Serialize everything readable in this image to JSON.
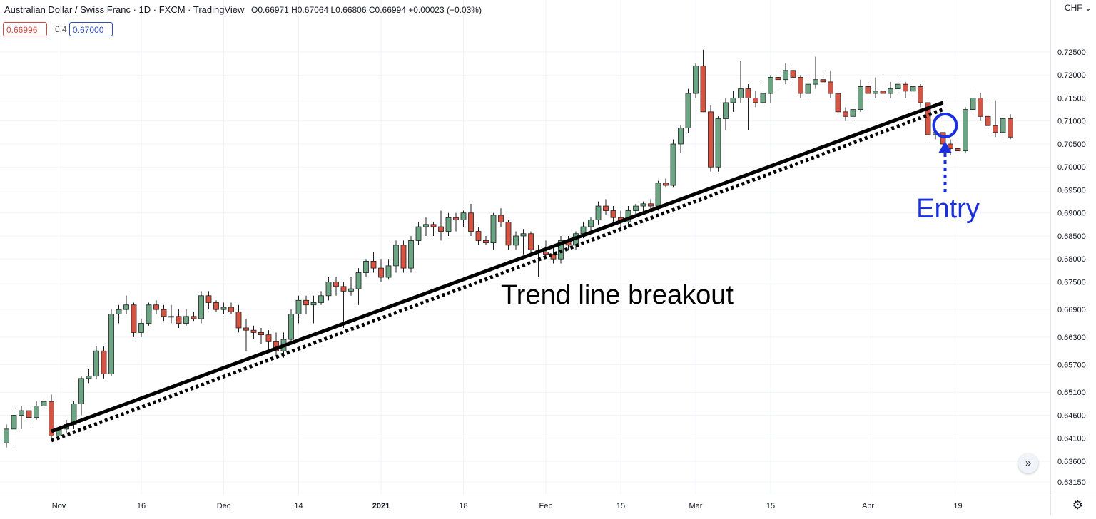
{
  "header": {
    "title": "Australian Dollar / Swiss Franc · 1D · FXCM · TradingView",
    "ohlc": "O0.66971 H0.67064 L0.66806 C0.66994 +0.00023 (+0.03%)",
    "bid": "0.66996",
    "spread": "0.4",
    "ask": "0.67000",
    "currency": "CHF",
    "currency_icon": "chevron-down-icon"
  },
  "controls": {
    "scroll_icon": "»",
    "settings_icon": "⚙"
  },
  "chart_data": {
    "type": "candlestick",
    "symbol": "AUDCHF",
    "timeframe": "1D",
    "y_ticks": [
      "0.72500",
      "0.72000",
      "0.71500",
      "0.71000",
      "0.70500",
      "0.70000",
      "0.69500",
      "0.69000",
      "0.68500",
      "0.68000",
      "0.67500",
      "0.66900",
      "0.66300",
      "0.65700",
      "0.65100",
      "0.64600",
      "0.64100",
      "0.63600",
      "0.63150"
    ],
    "y_tick_values": [
      0.725,
      0.72,
      0.715,
      0.71,
      0.705,
      0.7,
      0.695,
      0.69,
      0.685,
      0.68,
      0.675,
      0.669,
      0.663,
      0.657,
      0.651,
      0.646,
      0.641,
      0.636,
      0.6315
    ],
    "x_ticks": [
      {
        "label": "Nov",
        "bold": false,
        "bar": 7
      },
      {
        "label": "16",
        "bold": false,
        "bar": 18
      },
      {
        "label": "Dec",
        "bold": false,
        "bar": 29
      },
      {
        "label": "14",
        "bold": false,
        "bar": 39
      },
      {
        "label": "2021",
        "bold": true,
        "bar": 50
      },
      {
        "label": "18",
        "bold": false,
        "bar": 61
      },
      {
        "label": "Feb",
        "bold": false,
        "bar": 72
      },
      {
        "label": "15",
        "bold": false,
        "bar": 82
      },
      {
        "label": "Mar",
        "bold": false,
        "bar": 92
      },
      {
        "label": "15",
        "bold": false,
        "bar": 102
      },
      {
        "label": "Apr",
        "bold": false,
        "bar": 115
      },
      {
        "label": "19",
        "bold": false,
        "bar": 127
      }
    ],
    "candles": [
      [
        0.64,
        0.644,
        0.639,
        0.643
      ],
      [
        0.643,
        0.6475,
        0.6395,
        0.646
      ],
      [
        0.646,
        0.648,
        0.643,
        0.647
      ],
      [
        0.647,
        0.648,
        0.644,
        0.6455
      ],
      [
        0.6455,
        0.649,
        0.645,
        0.648
      ],
      [
        0.648,
        0.6495,
        0.647,
        0.649
      ],
      [
        0.649,
        0.6505,
        0.641,
        0.6415
      ],
      [
        0.6415,
        0.644,
        0.641,
        0.643
      ],
      [
        0.643,
        0.645,
        0.642,
        0.644
      ],
      [
        0.644,
        0.649,
        0.643,
        0.6485
      ],
      [
        0.6485,
        0.6545,
        0.646,
        0.654
      ],
      [
        0.654,
        0.656,
        0.653,
        0.6545
      ],
      [
        0.6545,
        0.661,
        0.654,
        0.66
      ],
      [
        0.66,
        0.661,
        0.654,
        0.655
      ],
      [
        0.655,
        0.669,
        0.6545,
        0.668
      ],
      [
        0.668,
        0.67,
        0.666,
        0.669
      ],
      [
        0.669,
        0.672,
        0.668,
        0.67
      ],
      [
        0.67,
        0.6705,
        0.663,
        0.664
      ],
      [
        0.664,
        0.667,
        0.663,
        0.666
      ],
      [
        0.666,
        0.6705,
        0.6655,
        0.67
      ],
      [
        0.67,
        0.671,
        0.668,
        0.669
      ],
      [
        0.669,
        0.67,
        0.6665,
        0.6675
      ],
      [
        0.6675,
        0.67,
        0.666,
        0.6675
      ],
      [
        0.6675,
        0.669,
        0.665,
        0.666
      ],
      [
        0.666,
        0.669,
        0.6655,
        0.6675
      ],
      [
        0.6675,
        0.6685,
        0.6665,
        0.667
      ],
      [
        0.667,
        0.673,
        0.666,
        0.672
      ],
      [
        0.672,
        0.673,
        0.669,
        0.6705
      ],
      [
        0.6705,
        0.671,
        0.6685,
        0.669
      ],
      [
        0.669,
        0.6705,
        0.668,
        0.6695
      ],
      [
        0.6695,
        0.6705,
        0.668,
        0.6685
      ],
      [
        0.6685,
        0.67,
        0.664,
        0.665
      ],
      [
        0.665,
        0.667,
        0.66,
        0.6645
      ],
      [
        0.6645,
        0.6655,
        0.6625,
        0.664
      ],
      [
        0.664,
        0.665,
        0.6615,
        0.6635
      ],
      [
        0.6635,
        0.6645,
        0.66,
        0.662
      ],
      [
        0.662,
        0.664,
        0.659,
        0.66
      ],
      [
        0.66,
        0.664,
        0.6585,
        0.6625
      ],
      [
        0.6625,
        0.669,
        0.662,
        0.668
      ],
      [
        0.668,
        0.672,
        0.666,
        0.671
      ],
      [
        0.671,
        0.672,
        0.668,
        0.67
      ],
      [
        0.67,
        0.672,
        0.666,
        0.6705
      ],
      [
        0.6705,
        0.673,
        0.67,
        0.672
      ],
      [
        0.672,
        0.676,
        0.671,
        0.675
      ],
      [
        0.675,
        0.676,
        0.672,
        0.674
      ],
      [
        0.674,
        0.675,
        0.665,
        0.673
      ],
      [
        0.673,
        0.676,
        0.672,
        0.6735
      ],
      [
        0.6735,
        0.678,
        0.67,
        0.677
      ],
      [
        0.677,
        0.68,
        0.676,
        0.6795
      ],
      [
        0.6795,
        0.6815,
        0.677,
        0.678
      ],
      [
        0.678,
        0.68,
        0.675,
        0.676
      ],
      [
        0.676,
        0.68,
        0.6755,
        0.6785
      ],
      [
        0.6785,
        0.684,
        0.677,
        0.683
      ],
      [
        0.683,
        0.684,
        0.677,
        0.678
      ],
      [
        0.678,
        0.685,
        0.677,
        0.684
      ],
      [
        0.684,
        0.688,
        0.683,
        0.687
      ],
      [
        0.687,
        0.689,
        0.685,
        0.6875
      ],
      [
        0.6875,
        0.688,
        0.685,
        0.687
      ],
      [
        0.687,
        0.6905,
        0.684,
        0.686
      ],
      [
        0.686,
        0.69,
        0.685,
        0.689
      ],
      [
        0.689,
        0.69,
        0.686,
        0.6885
      ],
      [
        0.6885,
        0.6905,
        0.687,
        0.69
      ],
      [
        0.69,
        0.692,
        0.685,
        0.686
      ],
      [
        0.686,
        0.687,
        0.683,
        0.684
      ],
      [
        0.684,
        0.685,
        0.683,
        0.6835
      ],
      [
        0.6835,
        0.69,
        0.682,
        0.6895
      ],
      [
        0.6895,
        0.691,
        0.687,
        0.688
      ],
      [
        0.688,
        0.6885,
        0.682,
        0.683
      ],
      [
        0.683,
        0.686,
        0.682,
        0.685
      ],
      [
        0.685,
        0.6865,
        0.681,
        0.6855
      ],
      [
        0.6855,
        0.686,
        0.681,
        0.682
      ],
      [
        0.682,
        0.683,
        0.676,
        0.6815
      ],
      [
        0.6815,
        0.684,
        0.68,
        0.681
      ],
      [
        0.681,
        0.683,
        0.679,
        0.68
      ],
      [
        0.68,
        0.685,
        0.679,
        0.684
      ],
      [
        0.684,
        0.685,
        0.682,
        0.683
      ],
      [
        0.683,
        0.686,
        0.682,
        0.6855
      ],
      [
        0.6855,
        0.688,
        0.6845,
        0.687
      ],
      [
        0.687,
        0.689,
        0.686,
        0.6885
      ],
      [
        0.6885,
        0.6925,
        0.6875,
        0.6915
      ],
      [
        0.6915,
        0.693,
        0.6895,
        0.6905
      ],
      [
        0.6905,
        0.6915,
        0.688,
        0.689
      ],
      [
        0.689,
        0.6905,
        0.687,
        0.688
      ],
      [
        0.688,
        0.6915,
        0.687,
        0.6905
      ],
      [
        0.6905,
        0.692,
        0.689,
        0.6915
      ],
      [
        0.6915,
        0.6925,
        0.6895,
        0.692
      ],
      [
        0.692,
        0.693,
        0.6905,
        0.6915
      ],
      [
        0.6915,
        0.697,
        0.6905,
        0.6965
      ],
      [
        0.6965,
        0.6975,
        0.6955,
        0.696
      ],
      [
        0.696,
        0.706,
        0.6955,
        0.705
      ],
      [
        0.705,
        0.709,
        0.703,
        0.7085
      ],
      [
        0.7085,
        0.717,
        0.7075,
        0.716
      ],
      [
        0.716,
        0.7225,
        0.715,
        0.722
      ],
      [
        0.722,
        0.7255,
        0.712,
        0.712
      ],
      [
        0.712,
        0.7135,
        0.699,
        0.7
      ],
      [
        0.7,
        0.711,
        0.699,
        0.7105
      ],
      [
        0.7105,
        0.715,
        0.708,
        0.714
      ],
      [
        0.714,
        0.7165,
        0.712,
        0.715
      ],
      [
        0.715,
        0.723,
        0.714,
        0.717
      ],
      [
        0.717,
        0.718,
        0.708,
        0.715
      ],
      [
        0.715,
        0.7165,
        0.713,
        0.714
      ],
      [
        0.714,
        0.718,
        0.713,
        0.716
      ],
      [
        0.716,
        0.72,
        0.714,
        0.7195
      ],
      [
        0.7195,
        0.721,
        0.7175,
        0.719
      ],
      [
        0.719,
        0.7225,
        0.718,
        0.721
      ],
      [
        0.721,
        0.722,
        0.718,
        0.7195
      ],
      [
        0.7195,
        0.72,
        0.715,
        0.716
      ],
      [
        0.716,
        0.72,
        0.715,
        0.718
      ],
      [
        0.718,
        0.724,
        0.717,
        0.719
      ],
      [
        0.719,
        0.7205,
        0.718,
        0.7185
      ],
      [
        0.7185,
        0.721,
        0.715,
        0.716
      ],
      [
        0.716,
        0.7175,
        0.711,
        0.712
      ],
      [
        0.712,
        0.713,
        0.71,
        0.711
      ],
      [
        0.711,
        0.713,
        0.7095,
        0.7125
      ],
      [
        0.7125,
        0.719,
        0.712,
        0.7175
      ],
      [
        0.7175,
        0.7185,
        0.715,
        0.716
      ],
      [
        0.716,
        0.7195,
        0.715,
        0.7165
      ],
      [
        0.7165,
        0.719,
        0.715,
        0.716
      ],
      [
        0.716,
        0.7185,
        0.715,
        0.717
      ],
      [
        0.717,
        0.72,
        0.716,
        0.718
      ],
      [
        0.718,
        0.7185,
        0.715,
        0.7165
      ],
      [
        0.7165,
        0.719,
        0.7155,
        0.7175
      ],
      [
        0.7175,
        0.718,
        0.713,
        0.714
      ],
      [
        0.714,
        0.7145,
        0.706,
        0.707
      ],
      [
        0.707,
        0.7085,
        0.706,
        0.7075
      ],
      [
        0.7075,
        0.708,
        0.703,
        0.705
      ],
      [
        0.705,
        0.706,
        0.7025,
        0.704
      ],
      [
        0.704,
        0.706,
        0.702,
        0.7035
      ],
      [
        0.7035,
        0.713,
        0.703,
        0.7125
      ],
      [
        0.7125,
        0.7165,
        0.7115,
        0.715
      ],
      [
        0.715,
        0.716,
        0.71,
        0.711
      ],
      [
        0.711,
        0.715,
        0.7085,
        0.709
      ],
      [
        0.709,
        0.7145,
        0.7065,
        0.7075
      ],
      [
        0.7075,
        0.7115,
        0.706,
        0.7105
      ],
      [
        0.7105,
        0.7115,
        0.706,
        0.7065
      ]
    ],
    "colors": {
      "up": "#6ba583",
      "down": "#d75442",
      "wick": "#1f1f1f",
      "grid": "#f0f3fa",
      "trendline": "#000000",
      "entry": "#1a2fe0"
    },
    "trendlines": [
      {
        "style": "solid",
        "from": [
          6,
          0.6425
        ],
        "to": [
          125,
          0.714
        ]
      },
      {
        "style": "dotted",
        "from": [
          6,
          0.6405
        ],
        "to": [
          125,
          0.7125
        ]
      }
    ],
    "annotations": [
      {
        "text": "Trend line breakout",
        "color": "#000000"
      },
      {
        "text": "Entry",
        "color": "#1a2fe0",
        "marker": "circle",
        "bar": 125,
        "price": 0.709
      }
    ]
  }
}
